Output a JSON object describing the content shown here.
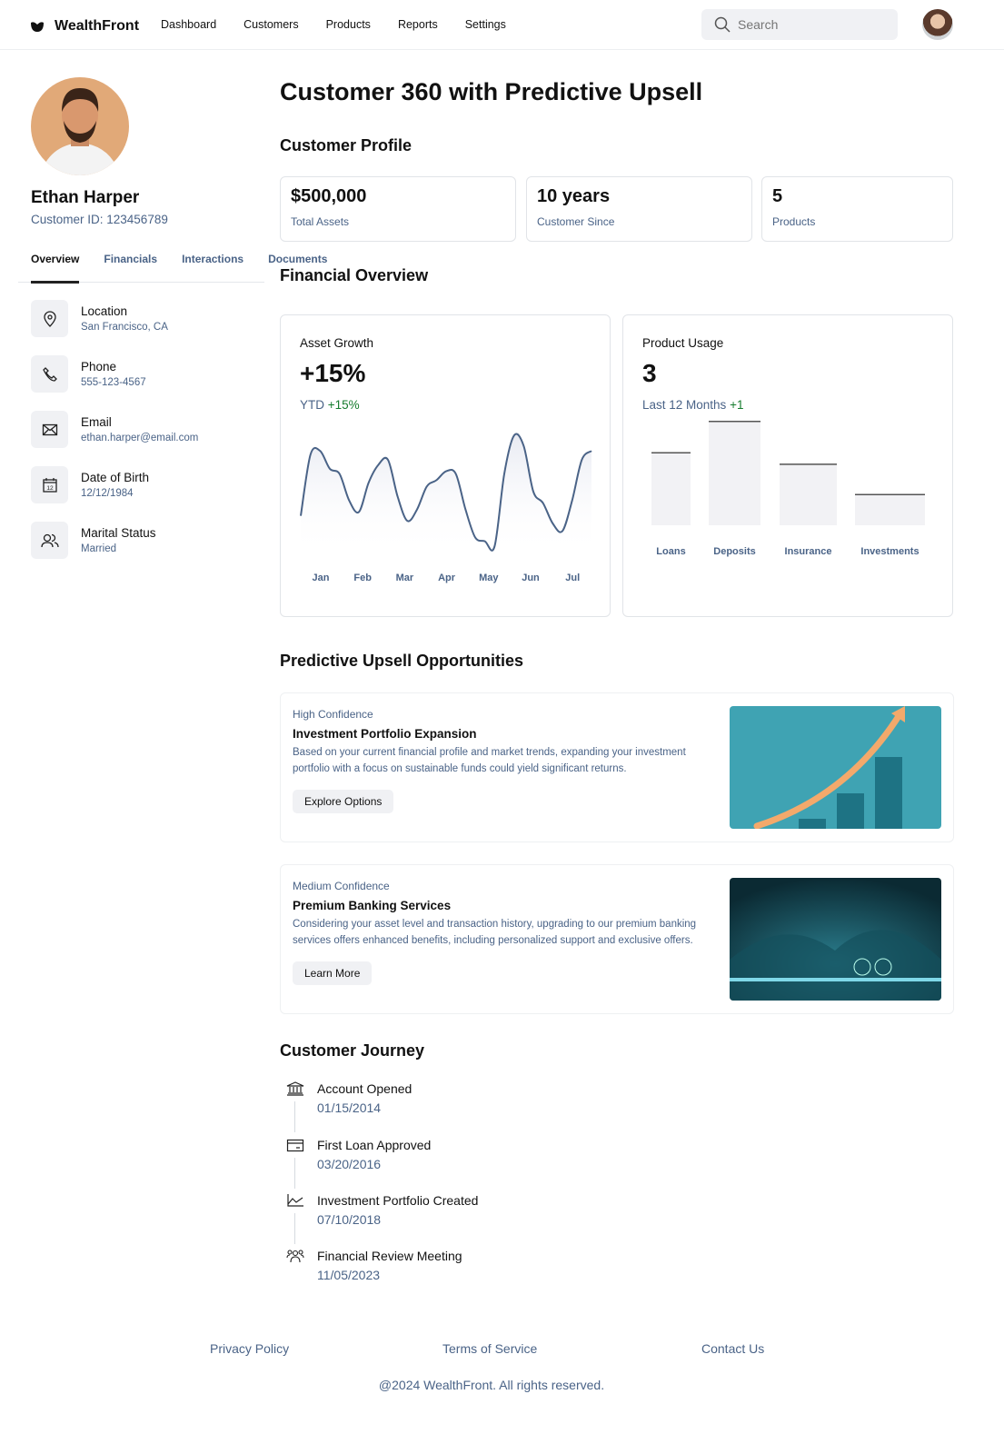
{
  "app": {
    "name": "WealthFront",
    "nav": [
      "Dashboard",
      "Customers",
      "Products",
      "Reports",
      "Settings"
    ],
    "search_placeholder": "Search"
  },
  "customer": {
    "name": "Ethan Harper",
    "id_label": "Customer ID: 123456789",
    "tabs": [
      "Overview",
      "Financials",
      "Interactions",
      "Documents"
    ],
    "active_tab": "Overview",
    "details": [
      {
        "label": "Location",
        "value": "San Francisco, CA",
        "icon": "map-pin-icon"
      },
      {
        "label": "Phone",
        "value": "555-123-4567",
        "icon": "phone-icon"
      },
      {
        "label": "Email",
        "value": "ethan.harper@email.com",
        "icon": "mail-icon"
      },
      {
        "label": "Date of Birth",
        "value": "12/12/1984",
        "icon": "calendar-icon"
      },
      {
        "label": "Marital Status",
        "value": "Married",
        "icon": "users-icon"
      }
    ]
  },
  "page": {
    "title": "Customer 360 with Predictive Upsell",
    "profile_heading": "Customer Profile",
    "overview_heading": "Financial Overview",
    "upsell_heading": "Predictive Upsell Opportunities",
    "journey_heading": "Customer Journey"
  },
  "stats": [
    {
      "value": "$500,000",
      "label": "Total Assets"
    },
    {
      "value": "10 years",
      "label": "Customer Since"
    },
    {
      "value": "5",
      "label": "Products"
    }
  ],
  "asset_growth": {
    "title": "Asset Growth",
    "value": "+15%",
    "sub_label": "YTD",
    "sub_change": "+15%"
  },
  "product_usage": {
    "title": "Product Usage",
    "value": "3",
    "sub_label": "Last 12 Months",
    "sub_change": "+1"
  },
  "chart_data": [
    {
      "type": "area",
      "title": "Asset Growth",
      "x_ticks": [
        "Jan",
        "Feb",
        "Mar",
        "Apr",
        "May",
        "Jun",
        "Jul"
      ],
      "y_axis": "none",
      "grid": false,
      "color": "#4a6387",
      "values": [
        31,
        79,
        82,
        68,
        64,
        43,
        34,
        57,
        71,
        75,
        46,
        27,
        36,
        54,
        59,
        66,
        64,
        36,
        14,
        11,
        7,
        64,
        94,
        86,
        50,
        41,
        25,
        19,
        43,
        75,
        82
      ]
    },
    {
      "type": "bar",
      "title": "Product Usage",
      "categories": [
        "Loans",
        "Deposits",
        "Insurance",
        "Investments"
      ],
      "values": [
        70,
        100,
        59,
        30
      ],
      "y_axis": "none",
      "grid": false
    }
  ],
  "upsell": [
    {
      "confidence": "High Confidence",
      "title": "Investment Portfolio Expansion",
      "description": "Based on your current financial profile and market trends, expanding your investment portfolio with a focus on sustainable funds could yield significant returns.",
      "button": "Explore Options"
    },
    {
      "confidence": "Medium Confidence",
      "title": "Premium Banking Services",
      "description": "Considering your asset level and transaction history, upgrading to our premium banking services offers enhanced benefits, including personalized support and exclusive offers.",
      "button": "Learn More"
    }
  ],
  "journey": [
    {
      "title": "Account Opened",
      "date": "01/15/2014",
      "icon": "bank-icon"
    },
    {
      "title": "First Loan Approved",
      "date": "03/20/2016",
      "icon": "credit-card-icon"
    },
    {
      "title": "Investment Portfolio Created",
      "date": "07/10/2018",
      "icon": "line-chart-icon"
    },
    {
      "title": "Financial Review Meeting",
      "date": "11/05/2023",
      "icon": "users-icon"
    }
  ],
  "footer": {
    "links": [
      "Privacy Policy",
      "Terms of Service",
      "Contact Us"
    ],
    "copyright": "@2024 WealthFront. All rights reserved."
  }
}
